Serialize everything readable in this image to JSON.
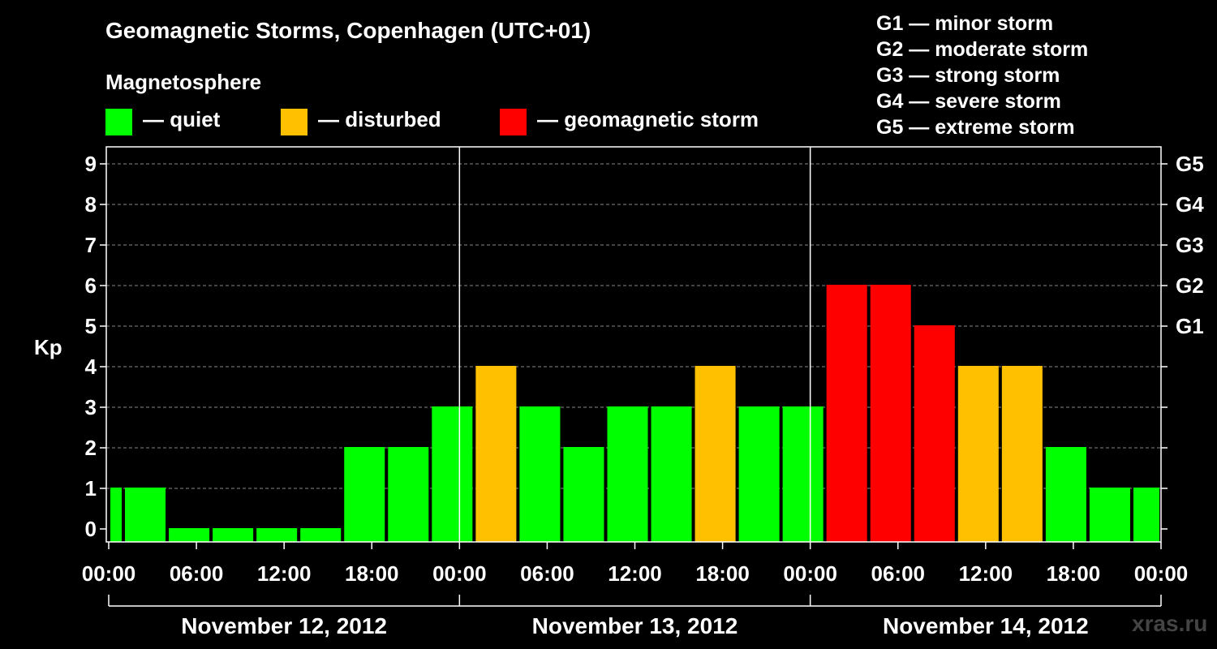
{
  "title": "Geomagnetic Storms, Copenhagen (UTC+01)",
  "magnetosphere": {
    "heading": "Magnetosphere",
    "items": [
      {
        "label": "— quiet",
        "color": "#00ff00"
      },
      {
        "label": "— disturbed",
        "color": "#ffc000"
      },
      {
        "label": "— geomagnetic storm",
        "color": "#ff0000"
      }
    ]
  },
  "storm_scale": [
    "G1 — minor storm",
    "G2 — moderate storm",
    "G3 — strong storm",
    "G4 — severe storm",
    "G5 — extreme storm"
  ],
  "watermark": "xras.ru",
  "chart_data": {
    "type": "bar",
    "ylabel": "Kp",
    "ylim": [
      0,
      9
    ],
    "y_ticks": [
      "0",
      "1",
      "2",
      "3",
      "4",
      "5",
      "6",
      "7",
      "8",
      "9"
    ],
    "right_axis_labels": [
      {
        "kp": 5,
        "label": "G1"
      },
      {
        "kp": 6,
        "label": "G2"
      },
      {
        "kp": 7,
        "label": "G3"
      },
      {
        "kp": 8,
        "label": "G4"
      },
      {
        "kp": 9,
        "label": "G5"
      }
    ],
    "x_tick_labels": [
      "00:00",
      "06:00",
      "12:00",
      "18:00",
      "00:00",
      "06:00",
      "12:00",
      "18:00",
      "00:00",
      "06:00",
      "12:00",
      "18:00",
      "00:00"
    ],
    "day_labels": [
      "November 12, 2012",
      "November 13, 2012",
      "November 14, 2012"
    ],
    "range_hours": [
      0,
      72
    ],
    "bars": [
      {
        "start_hour": 0,
        "end_hour": 1,
        "kp": 1,
        "level": "quiet"
      },
      {
        "start_hour": 1,
        "end_hour": 4,
        "kp": 1,
        "level": "quiet"
      },
      {
        "start_hour": 4,
        "end_hour": 7,
        "kp": 0,
        "level": "quiet"
      },
      {
        "start_hour": 7,
        "end_hour": 10,
        "kp": 0,
        "level": "quiet"
      },
      {
        "start_hour": 10,
        "end_hour": 13,
        "kp": 0,
        "level": "quiet"
      },
      {
        "start_hour": 13,
        "end_hour": 16,
        "kp": 0,
        "level": "quiet"
      },
      {
        "start_hour": 16,
        "end_hour": 19,
        "kp": 2,
        "level": "quiet"
      },
      {
        "start_hour": 19,
        "end_hour": 22,
        "kp": 2,
        "level": "quiet"
      },
      {
        "start_hour": 22,
        "end_hour": 25,
        "kp": 3,
        "level": "quiet"
      },
      {
        "start_hour": 25,
        "end_hour": 28,
        "kp": 4,
        "level": "disturbed"
      },
      {
        "start_hour": 28,
        "end_hour": 31,
        "kp": 3,
        "level": "quiet"
      },
      {
        "start_hour": 31,
        "end_hour": 34,
        "kp": 2,
        "level": "quiet"
      },
      {
        "start_hour": 34,
        "end_hour": 37,
        "kp": 3,
        "level": "quiet"
      },
      {
        "start_hour": 37,
        "end_hour": 40,
        "kp": 3,
        "level": "quiet"
      },
      {
        "start_hour": 40,
        "end_hour": 43,
        "kp": 4,
        "level": "disturbed"
      },
      {
        "start_hour": 43,
        "end_hour": 46,
        "kp": 3,
        "level": "quiet"
      },
      {
        "start_hour": 46,
        "end_hour": 49,
        "kp": 3,
        "level": "quiet"
      },
      {
        "start_hour": 49,
        "end_hour": 52,
        "kp": 6,
        "level": "storm"
      },
      {
        "start_hour": 52,
        "end_hour": 55,
        "kp": 6,
        "level": "storm"
      },
      {
        "start_hour": 55,
        "end_hour": 58,
        "kp": 5,
        "level": "storm"
      },
      {
        "start_hour": 58,
        "end_hour": 61,
        "kp": 4,
        "level": "disturbed"
      },
      {
        "start_hour": 61,
        "end_hour": 64,
        "kp": 4,
        "level": "disturbed"
      },
      {
        "start_hour": 64,
        "end_hour": 67,
        "kp": 2,
        "level": "quiet"
      },
      {
        "start_hour": 67,
        "end_hour": 70,
        "kp": 1,
        "level": "quiet"
      },
      {
        "start_hour": 70,
        "end_hour": 72,
        "kp": 1,
        "level": "quiet"
      }
    ],
    "colors": {
      "quiet": "#00ff00",
      "disturbed": "#ffc000",
      "storm": "#ff0000"
    }
  }
}
